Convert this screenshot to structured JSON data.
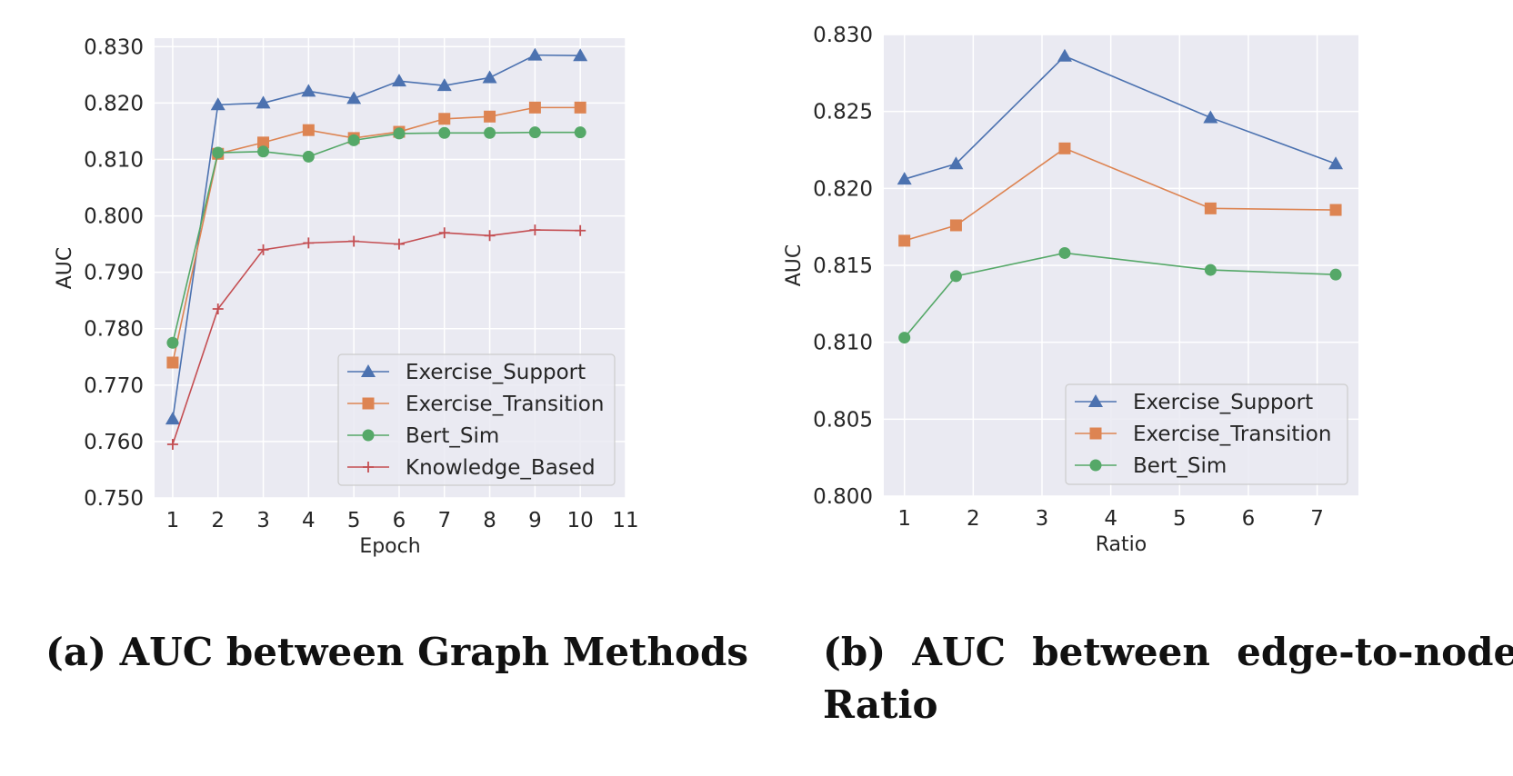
{
  "chart_data": [
    {
      "type": "line",
      "caption": "(a) AUC between Graph Methods",
      "xlabel": "Epoch",
      "ylabel": "AUC",
      "xlim": [
        0.6,
        11
      ],
      "ylim": [
        0.75,
        0.8315
      ],
      "xticks": [
        1,
        2,
        3,
        4,
        5,
        6,
        7,
        8,
        9,
        10,
        11
      ],
      "xtick_labels": [
        "1",
        "2",
        "3",
        "4",
        "5",
        "6",
        "7",
        "8",
        "9",
        "10",
        "11"
      ],
      "yticks": [
        0.75,
        0.76,
        0.77,
        0.78,
        0.79,
        0.8,
        0.81,
        0.82,
        0.83
      ],
      "ytick_labels": [
        "0.750",
        "0.760",
        "0.770",
        "0.780",
        "0.790",
        "0.800",
        "0.810",
        "0.820",
        "0.830"
      ],
      "grid": true,
      "legend_position": "lower-right",
      "x": [
        1,
        2,
        3,
        4,
        5,
        6,
        7,
        8,
        9,
        10
      ],
      "series": [
        {
          "name": "Exercise_Support",
          "color": "#4c72b0",
          "marker": "triangle",
          "values": [
            0.764,
            0.8197,
            0.82,
            0.8221,
            0.8208,
            0.8239,
            0.8231,
            0.8245,
            0.8285,
            0.8284
          ]
        },
        {
          "name": "Exercise_Transition",
          "color": "#dd8452",
          "marker": "square",
          "values": [
            0.774,
            0.811,
            0.813,
            0.8152,
            0.8138,
            0.8149,
            0.8172,
            0.8176,
            0.8192,
            0.8192
          ]
        },
        {
          "name": "Bert_Sim",
          "color": "#55a868",
          "marker": "circle",
          "values": [
            0.7775,
            0.8112,
            0.8114,
            0.8105,
            0.8134,
            0.8146,
            0.8147,
            0.8147,
            0.8148,
            0.8148
          ]
        },
        {
          "name": "Knowledge_Based",
          "color": "#c44e52",
          "marker": "plus",
          "values": [
            0.7595,
            0.7835,
            0.794,
            0.7952,
            0.7955,
            0.795,
            0.797,
            0.7965,
            0.7975,
            0.7974
          ]
        }
      ]
    },
    {
      "type": "line",
      "caption_line1": "(b)  AUC  between  edge-to-node",
      "caption_line2": "Ratio",
      "xlabel": "Ratio",
      "ylabel": "AUC",
      "xlim": [
        0.7,
        7.6
      ],
      "ylim": [
        0.8,
        0.83
      ],
      "xticks": [
        1,
        2,
        3,
        4,
        5,
        6,
        7
      ],
      "xtick_labels": [
        "1",
        "2",
        "3",
        "4",
        "5",
        "6",
        "7"
      ],
      "yticks": [
        0.8,
        0.805,
        0.81,
        0.815,
        0.82,
        0.825,
        0.83
      ],
      "ytick_labels": [
        "0.800",
        "0.805",
        "0.810",
        "0.815",
        "0.820",
        "0.825",
        "0.830"
      ],
      "grid": true,
      "legend_position": "lower-right",
      "x": [
        1.0,
        1.75,
        3.33,
        5.45,
        7.27
      ],
      "series": [
        {
          "name": "Exercise_Support",
          "color": "#4c72b0",
          "marker": "triangle",
          "values": [
            0.8206,
            0.8216,
            0.8286,
            0.8246,
            0.8216
          ]
        },
        {
          "name": "Exercise_Transition",
          "color": "#dd8452",
          "marker": "square",
          "values": [
            0.8166,
            0.8176,
            0.8226,
            0.8187,
            0.8186
          ]
        },
        {
          "name": "Bert_Sim",
          "color": "#55a868",
          "marker": "circle",
          "values": [
            0.8103,
            0.8143,
            0.8158,
            0.8147,
            0.8144
          ]
        }
      ]
    }
  ]
}
